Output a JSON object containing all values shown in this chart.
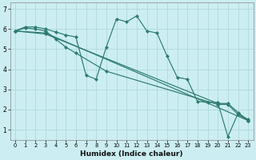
{
  "xlabel": "Humidex (Indice chaleur)",
  "background_color": "#cceef2",
  "grid_color": "#aad4d8",
  "line_color": "#2d7b6f",
  "xlim": [
    -0.5,
    23.5
  ],
  "ylim": [
    0.5,
    7.3
  ],
  "xticks": [
    0,
    1,
    2,
    3,
    4,
    5,
    6,
    7,
    8,
    9,
    10,
    11,
    12,
    13,
    14,
    15,
    16,
    17,
    18,
    19,
    20,
    21,
    22,
    23
  ],
  "yticks": [
    1,
    2,
    3,
    4,
    5,
    6,
    7
  ],
  "lines": [
    {
      "x": [
        0,
        1,
        2,
        3,
        4,
        5,
        6,
        7,
        8,
        9,
        10,
        11,
        12,
        13,
        14,
        15,
        16,
        17,
        18,
        19,
        20,
        21,
        22,
        23
      ],
      "y": [
        5.9,
        6.1,
        6.1,
        6.0,
        5.85,
        5.7,
        5.6,
        3.7,
        3.5,
        5.1,
        6.5,
        6.35,
        6.65,
        5.9,
        5.8,
        4.65,
        3.6,
        3.5,
        2.4,
        2.35,
        2.35,
        0.65,
        1.8,
        1.5
      ]
    },
    {
      "x": [
        0,
        3,
        23
      ],
      "y": [
        5.9,
        5.8,
        1.45
      ]
    },
    {
      "x": [
        0,
        3,
        20,
        21,
        22,
        23
      ],
      "y": [
        5.9,
        5.75,
        2.3,
        2.3,
        1.85,
        1.45
      ]
    },
    {
      "x": [
        0,
        1,
        2,
        3,
        4,
        5,
        6,
        9,
        20,
        21,
        22,
        23
      ],
      "y": [
        5.9,
        6.05,
        6.0,
        5.9,
        5.5,
        5.1,
        4.8,
        3.9,
        2.25,
        2.25,
        1.75,
        1.45
      ]
    }
  ]
}
